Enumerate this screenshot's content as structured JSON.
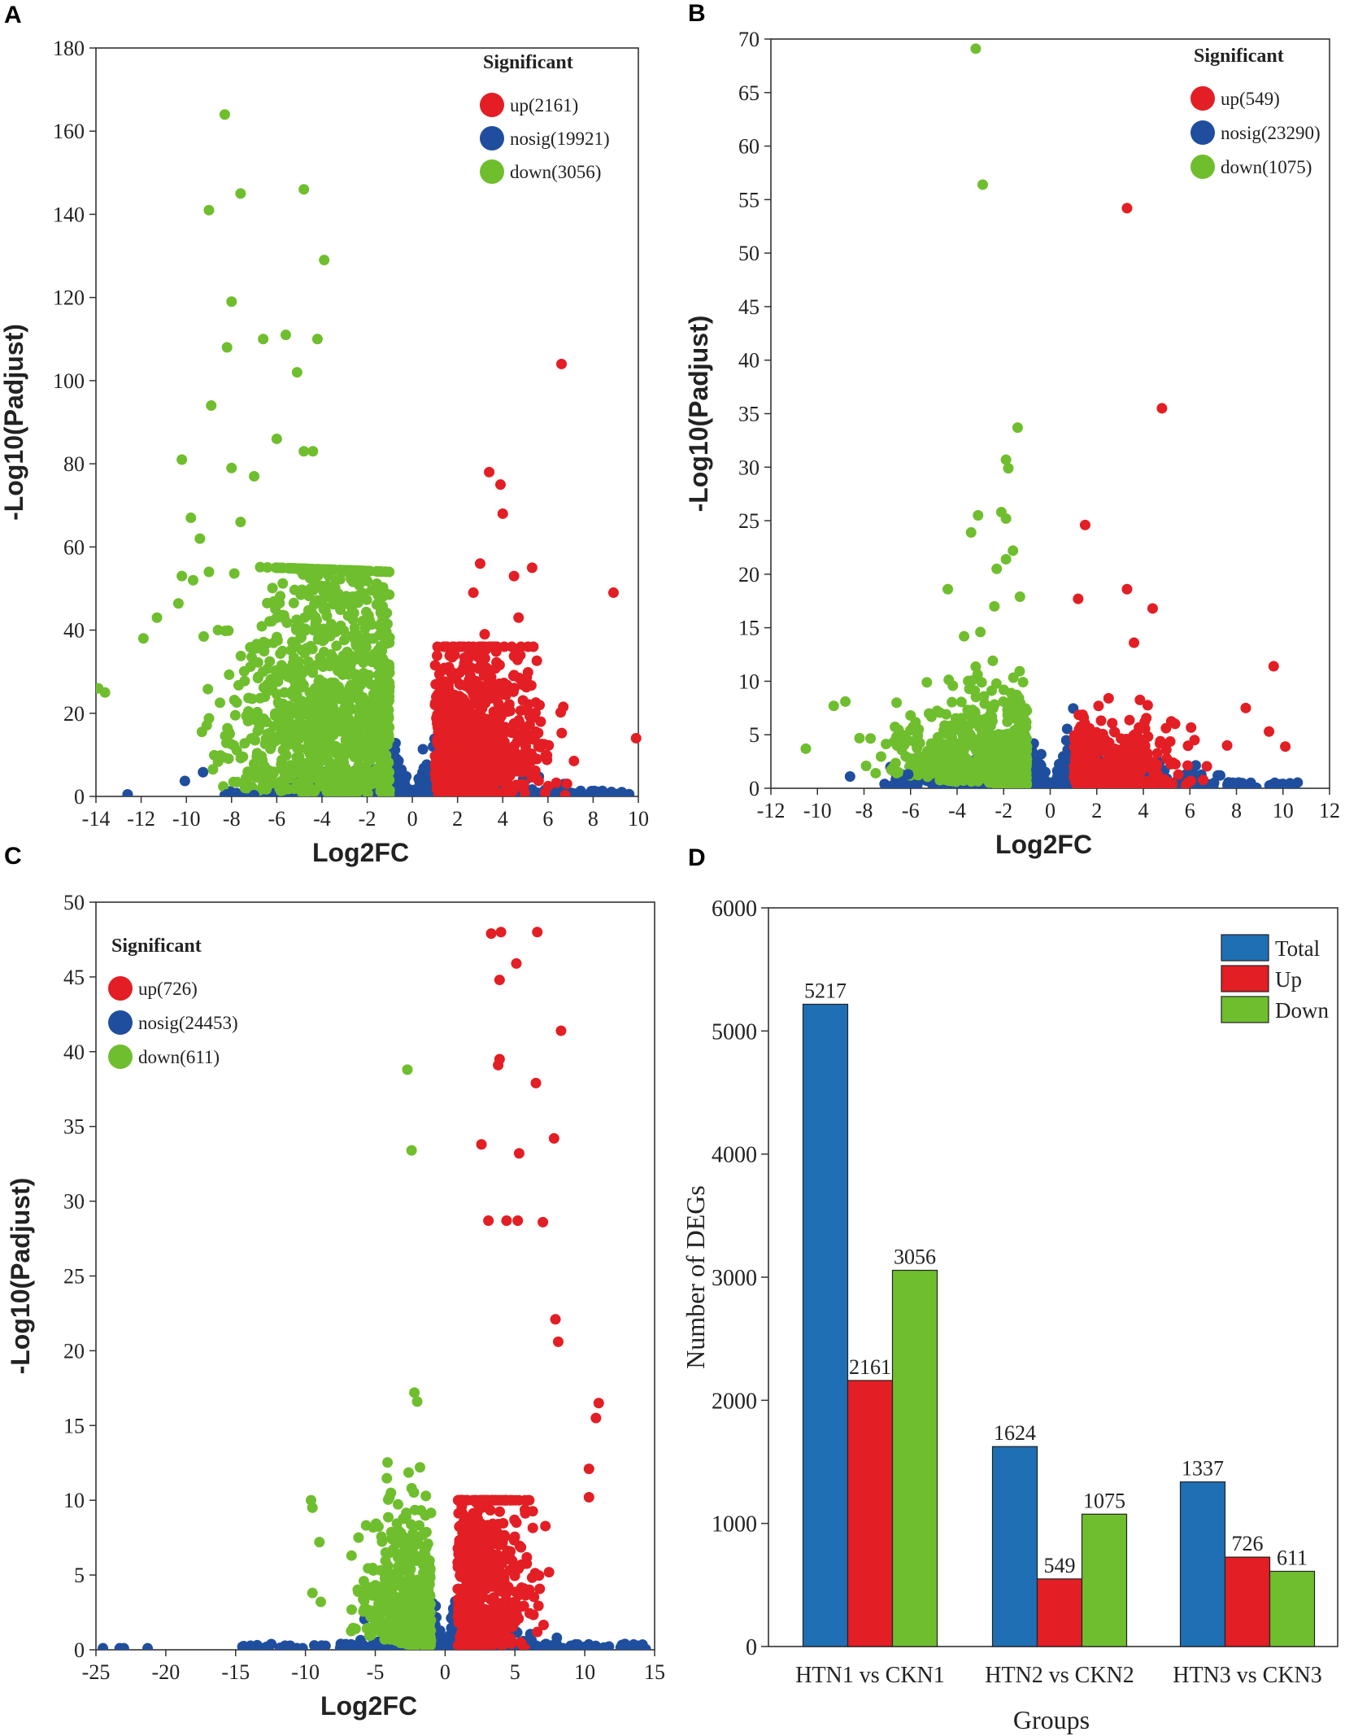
{
  "chart_data": [
    {
      "panel": "A",
      "type": "scatter",
      "xlabel": "Log2FC",
      "ylabel": "-Log10(Padjust)",
      "xlim": [
        -14,
        10
      ],
      "ylim": [
        0,
        180
      ],
      "xticks": [
        -14,
        -12,
        -10,
        -8,
        -6,
        -4,
        -2,
        0,
        2,
        4,
        6,
        8,
        10
      ],
      "yticks": [
        0,
        20,
        40,
        60,
        80,
        100,
        120,
        140,
        160,
        180
      ],
      "legend": {
        "title": "Significant",
        "items": [
          {
            "key": "up",
            "label": "up(2161)",
            "color": "#e31e24"
          },
          {
            "key": "nosig",
            "label": "nosig(19921)",
            "color": "#1f4e9e"
          },
          {
            "key": "down",
            "label": "down(3056)",
            "color": "#6fbe2e"
          }
        ]
      },
      "counts": {
        "up": 2161,
        "nosig": 19921,
        "down": 3056
      },
      "notable_points": {
        "down": [
          [
            -8.3,
            164
          ],
          [
            -7.6,
            145
          ],
          [
            -9.0,
            141
          ],
          [
            -4.8,
            146
          ],
          [
            -3.9,
            129
          ],
          [
            -8.0,
            119
          ],
          [
            -5.6,
            111
          ],
          [
            -6.6,
            110
          ],
          [
            -4.2,
            110
          ],
          [
            -8.2,
            108
          ],
          [
            -5.1,
            102
          ],
          [
            -8.9,
            94
          ],
          [
            -6.0,
            86
          ],
          [
            -10.2,
            81
          ],
          [
            -8.0,
            79
          ],
          [
            -4.8,
            83
          ],
          [
            -4.4,
            83
          ],
          [
            -7.0,
            77
          ],
          [
            -9.8,
            67
          ],
          [
            -7.6,
            66
          ],
          [
            -9.4,
            62
          ],
          [
            -10.2,
            53
          ],
          [
            -9.7,
            52
          ],
          [
            -9.0,
            54
          ],
          [
            -11.3,
            43
          ],
          [
            -8.6,
            40
          ],
          [
            -11.9,
            38
          ],
          [
            -13.9,
            26
          ],
          [
            -13.6,
            25
          ]
        ],
        "up": [
          [
            6.6,
            104
          ],
          [
            3.4,
            78
          ],
          [
            3.9,
            75
          ],
          [
            4.0,
            68
          ],
          [
            8.9,
            49
          ],
          [
            9.9,
            14
          ],
          [
            3.0,
            56
          ],
          [
            5.3,
            55
          ],
          [
            4.5,
            53
          ],
          [
            2.7,
            49
          ],
          [
            4.7,
            43
          ],
          [
            3.2,
            39
          ],
          [
            3.2,
            36
          ],
          [
            2.3,
            32
          ]
        ],
        "nosig": [
          [
            -12.6,
            0.5
          ],
          [
            -8.2,
            0.5
          ],
          [
            -7.0,
            0.3
          ]
        ]
      }
    },
    {
      "panel": "B",
      "type": "scatter",
      "xlabel": "Log2FC",
      "ylabel": "-Log10(Padjust)",
      "xlim": [
        -12,
        12
      ],
      "ylim": [
        0,
        70
      ],
      "xticks": [
        -12,
        -10,
        -8,
        -6,
        -4,
        -2,
        0,
        2,
        4,
        6,
        8,
        10,
        12
      ],
      "yticks": [
        0,
        5,
        10,
        15,
        20,
        25,
        30,
        35,
        40,
        45,
        50,
        55,
        60,
        65,
        70
      ],
      "legend": {
        "title": "Significant",
        "items": [
          {
            "key": "up",
            "label": "up(549)",
            "color": "#e31e24"
          },
          {
            "key": "nosig",
            "label": "nosig(23290)",
            "color": "#1f4e9e"
          },
          {
            "key": "down",
            "label": "down(1075)",
            "color": "#6fbe2e"
          }
        ]
      },
      "counts": {
        "up": 549,
        "nosig": 23290,
        "down": 1075
      },
      "notable_points": {
        "down": [
          [
            -3.2,
            69.1
          ],
          [
            -2.9,
            56.4
          ],
          [
            -1.4,
            33.7
          ],
          [
            -1.9,
            30.7
          ],
          [
            -1.8,
            29.9
          ],
          [
            -3.1,
            25.5
          ],
          [
            -2.1,
            25.8
          ],
          [
            -1.9,
            25.2
          ],
          [
            -3.4,
            23.9
          ],
          [
            -1.6,
            22.2
          ],
          [
            -1.9,
            21.4
          ],
          [
            -2.3,
            20.5
          ],
          [
            -4.4,
            18.6
          ],
          [
            -2.4,
            17.0
          ],
          [
            -1.3,
            17.9
          ],
          [
            -3.7,
            14.2
          ],
          [
            -3.0,
            14.6
          ],
          [
            -10.5,
            3.7
          ],
          [
            -9.3,
            7.7
          ],
          [
            -8.8,
            8.1
          ],
          [
            -6.6,
            8.0
          ],
          [
            -5.3,
            9.9
          ],
          [
            -6.0,
            6.8
          ]
        ],
        "up": [
          [
            3.3,
            54.2
          ],
          [
            4.8,
            35.5
          ],
          [
            1.5,
            24.6
          ],
          [
            3.3,
            18.6
          ],
          [
            4.4,
            16.8
          ],
          [
            1.2,
            17.7
          ],
          [
            3.6,
            13.6
          ],
          [
            10.1,
            3.9
          ],
          [
            9.6,
            11.4
          ],
          [
            8.4,
            7.5
          ],
          [
            9.4,
            5.3
          ],
          [
            7.6,
            4.0
          ],
          [
            6.2,
            4.5
          ]
        ],
        "nosig": [
          [
            8.4,
            0.1
          ],
          [
            7.3,
            1.2
          ],
          [
            -8.6,
            1.1
          ],
          [
            -6.1,
            1.3
          ]
        ]
      }
    },
    {
      "panel": "C",
      "type": "scatter",
      "xlabel": "Log2FC",
      "ylabel": "-Log10(Padjust)",
      "xlim": [
        -25,
        15
      ],
      "ylim": [
        0,
        50
      ],
      "xticks": [
        -25,
        -20,
        -15,
        -10,
        -5,
        0,
        5,
        10,
        15
      ],
      "yticks": [
        0,
        5,
        10,
        15,
        20,
        25,
        30,
        35,
        40,
        45,
        50
      ],
      "legend": {
        "title": "Significant",
        "items": [
          {
            "key": "up",
            "label": "up(726)",
            "color": "#e31e24"
          },
          {
            "key": "nosig",
            "label": "nosig(24453)",
            "color": "#1f4e9e"
          },
          {
            "key": "down",
            "label": "down(611)",
            "color": "#6fbe2e"
          }
        ]
      },
      "counts": {
        "up": 726,
        "nosig": 24453,
        "down": 611
      },
      "notable_points": {
        "down": [
          [
            -2.7,
            38.8
          ],
          [
            -2.4,
            33.4
          ],
          [
            -2.2,
            17.2
          ],
          [
            -2.0,
            16.6
          ],
          [
            -1.8,
            12.2
          ],
          [
            -2.4,
            10.8
          ],
          [
            -9.6,
            10.0
          ],
          [
            -9.5,
            9.5
          ],
          [
            -6.2,
            7.5
          ],
          [
            -9.0,
            7.2
          ],
          [
            -6.7,
            6.3
          ],
          [
            -9.5,
            3.8
          ],
          [
            -8.9,
            3.2
          ]
        ],
        "up": [
          [
            3.3,
            47.9
          ],
          [
            4.0,
            48.0
          ],
          [
            6.6,
            48.0
          ],
          [
            5.1,
            45.9
          ],
          [
            3.9,
            44.8
          ],
          [
            8.3,
            41.4
          ],
          [
            3.9,
            39.5
          ],
          [
            3.8,
            39.1
          ],
          [
            6.5,
            37.9
          ],
          [
            7.8,
            34.2
          ],
          [
            2.6,
            33.8
          ],
          [
            5.3,
            33.2
          ],
          [
            4.4,
            28.7
          ],
          [
            5.2,
            28.7
          ],
          [
            7.0,
            28.6
          ],
          [
            3.1,
            28.7
          ],
          [
            11.0,
            16.5
          ],
          [
            10.8,
            15.5
          ],
          [
            10.3,
            12.1
          ],
          [
            10.3,
            10.2
          ],
          [
            8.1,
            20.6
          ],
          [
            7.9,
            22.1
          ]
        ],
        "nosig": [
          [
            -24.5,
            0.1
          ],
          [
            -23.3,
            0.1
          ],
          [
            -23.0,
            0.1
          ],
          [
            -21.3,
            0.1
          ],
          [
            -13.2,
            0.1
          ],
          [
            -10.2,
            0.1
          ],
          [
            8.0,
            0.8
          ],
          [
            6.2,
            0.6
          ]
        ]
      }
    },
    {
      "panel": "D",
      "type": "bar",
      "xlabel": "Groups",
      "ylabel": "Number of DEGs",
      "ylim": [
        0,
        6000
      ],
      "yticks": [
        0,
        1000,
        2000,
        3000,
        4000,
        5000,
        6000
      ],
      "categories": [
        "HTN1 vs CKN1",
        "HTN2 vs CKN2",
        "HTN3 vs CKN3"
      ],
      "series": [
        {
          "name": "Total",
          "values": [
            5217,
            1624,
            1337
          ],
          "color": "#1f6fb4"
        },
        {
          "name": "Up",
          "values": [
            2161,
            549,
            726
          ],
          "color": "#e31e24"
        },
        {
          "name": "Down",
          "values": [
            3056,
            1075,
            611
          ],
          "color": "#6fbe2e"
        }
      ],
      "legend_position": "top-right"
    }
  ]
}
